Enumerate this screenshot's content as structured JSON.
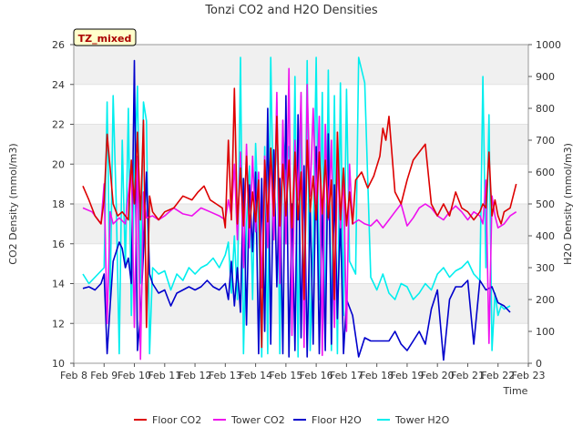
{
  "chart_data": {
    "type": "line",
    "title": "Tonzi CO2 and H2O Densities",
    "site_label": "TZ_mixed",
    "xlabel": "Time",
    "ylabel": "CO2 Density (mmol/m3)",
    "ylabel_right": "H2O Density (mmol/m3)",
    "xlim": [
      8,
      23
    ],
    "ylim": [
      10,
      26
    ],
    "ylim_right": [
      0,
      1000
    ],
    "x_ticks": [
      8,
      9,
      10,
      11,
      12,
      13,
      14,
      15,
      16,
      17,
      18,
      19,
      20,
      21,
      22,
      23
    ],
    "x_tick_labels": [
      "Feb 8",
      "Feb 9",
      "Feb 10",
      "Feb 11",
      "Feb 12",
      "Feb 13",
      "Feb 14",
      "Feb 15",
      "Feb 16",
      "Feb 17",
      "Feb 18",
      "Feb 19",
      "Feb 20",
      "Feb 21",
      "Feb 22",
      "Feb 23"
    ],
    "y_ticks": [
      10,
      12,
      14,
      16,
      18,
      20,
      22,
      24,
      26
    ],
    "y_tick_labels": [
      "10",
      "12",
      "14",
      "16",
      "18",
      "20",
      "22",
      "24",
      "26"
    ],
    "y_ticks_right": [
      0,
      100,
      200,
      300,
      400,
      500,
      600,
      700,
      800,
      900,
      1000
    ],
    "y_tick_labels_right": [
      "0",
      "100",
      "200",
      "300",
      "400",
      "500",
      "600",
      "700",
      "800",
      "900",
      "1000"
    ],
    "series": [
      {
        "name": "Floor CO2",
        "axis": "left",
        "color": "#dd0000",
        "x": [
          8.3,
          8.5,
          8.7,
          8.9,
          9.0,
          9.1,
          9.2,
          9.3,
          9.45,
          9.6,
          9.8,
          9.9,
          10.0,
          10.1,
          10.2,
          10.3,
          10.4,
          10.5,
          10.6,
          10.8,
          11.0,
          11.3,
          11.6,
          11.9,
          12.1,
          12.3,
          12.5,
          12.7,
          12.9,
          13.0,
          13.1,
          13.2,
          13.3,
          13.4,
          13.5,
          13.6,
          13.7,
          13.8,
          13.9,
          14.0,
          14.1,
          14.2,
          14.3,
          14.4,
          14.5,
          14.6,
          14.7,
          14.8,
          14.9,
          15.0,
          15.1,
          15.2,
          15.3,
          15.4,
          15.5,
          15.6,
          15.7,
          15.8,
          15.9,
          16.0,
          16.1,
          16.2,
          16.3,
          16.4,
          16.5,
          16.6,
          16.7,
          16.8,
          16.9,
          17.0,
          17.1,
          17.2,
          17.3,
          17.5,
          17.7,
          17.9,
          18.1,
          18.2,
          18.3,
          18.4,
          18.6,
          18.8,
          19.0,
          19.2,
          19.4,
          19.6,
          19.8,
          20.0,
          20.2,
          20.4,
          20.6,
          20.8,
          21.0,
          21.2,
          21.4,
          21.5,
          21.6,
          21.7,
          21.8,
          21.9,
          22.0,
          22.1,
          22.2,
          22.4,
          22.6
        ],
        "y": [
          18.9,
          18.2,
          17.4,
          17.0,
          18.2,
          21.5,
          19.8,
          18.0,
          17.4,
          17.6,
          17.2,
          20.2,
          18.0,
          21.6,
          17.2,
          22.2,
          11.8,
          18.4,
          17.6,
          17.2,
          17.6,
          17.8,
          18.4,
          18.2,
          18.6,
          18.9,
          18.2,
          18.0,
          17.8,
          16.8,
          21.2,
          17.2,
          23.8,
          17.0,
          19.8,
          16.9,
          20.4,
          16.8,
          18.6,
          17.1,
          19.2,
          10.8,
          20.2,
          17.1,
          20.8,
          17.4,
          22.4,
          16.9,
          20.0,
          17.4,
          20.2,
          16.8,
          20.6,
          17.2,
          19.6,
          13.2,
          21.2,
          17.6,
          19.4,
          17.2,
          20.6,
          17.5,
          20.2,
          17.3,
          19.2,
          13.2,
          21.6,
          17.2,
          19.8,
          16.9,
          18.6,
          17.0,
          19.2,
          19.6,
          18.8,
          19.4,
          20.4,
          21.8,
          21.2,
          22.4,
          18.6,
          18.0,
          19.2,
          20.2,
          20.6,
          21.0,
          18.0,
          17.4,
          18.0,
          17.4,
          18.6,
          17.8,
          17.6,
          17.2,
          17.6,
          18.0,
          17.8,
          20.6,
          17.4,
          18.2,
          17.4,
          17.0,
          17.6,
          17.8,
          19.0
        ]
      },
      {
        "name": "Tower CO2",
        "axis": "left",
        "color": "#ee11ee",
        "x": [
          8.3,
          8.6,
          8.9,
          9.0,
          9.1,
          9.2,
          9.3,
          9.5,
          9.7,
          9.9,
          10.0,
          10.1,
          10.2,
          10.3,
          10.4,
          10.6,
          10.8,
          11.0,
          11.3,
          11.6,
          11.9,
          12.2,
          12.5,
          12.8,
          13.0,
          13.1,
          13.2,
          13.3,
          13.4,
          13.5,
          13.6,
          13.7,
          13.8,
          13.9,
          14.0,
          14.1,
          14.2,
          14.3,
          14.4,
          14.5,
          14.6,
          14.7,
          14.8,
          14.9,
          15.0,
          15.1,
          15.2,
          15.3,
          15.4,
          15.5,
          15.6,
          15.7,
          15.8,
          15.9,
          16.0,
          16.1,
          16.2,
          16.3,
          16.4,
          16.5,
          16.6,
          16.7,
          16.8,
          16.9,
          17.0,
          17.1,
          17.2,
          17.4,
          17.6,
          17.8,
          18.0,
          18.2,
          18.4,
          18.6,
          18.8,
          19.0,
          19.2,
          19.4,
          19.6,
          19.8,
          20.0,
          20.2,
          20.4,
          20.6,
          20.8,
          21.0,
          21.2,
          21.4,
          21.5,
          21.6,
          21.7,
          21.8,
          21.9,
          22.0,
          22.2,
          22.4,
          22.6
        ],
        "y": [
          17.8,
          17.6,
          17.0,
          19.0,
          12.0,
          17.6,
          17.0,
          17.3,
          17.0,
          20.0,
          11.8,
          20.4,
          10.2,
          18.6,
          17.3,
          17.4,
          17.2,
          17.4,
          17.8,
          17.5,
          17.4,
          17.8,
          17.6,
          17.4,
          17.2,
          18.2,
          17.4,
          20.0,
          16.2,
          20.6,
          14.8,
          21.0,
          15.8,
          20.4,
          16.6,
          19.6,
          13.8,
          20.4,
          15.8,
          20.6,
          16.2,
          23.6,
          14.0,
          22.2,
          16.0,
          24.8,
          11.4,
          21.2,
          18.2,
          23.6,
          10.8,
          24.0,
          18.4,
          22.8,
          18.0,
          22.4,
          10.4,
          22.0,
          17.2,
          21.2,
          11.8,
          20.2,
          16.8,
          19.4,
          11.6,
          20.0,
          17.0,
          17.2,
          17.0,
          16.9,
          17.2,
          16.8,
          17.2,
          17.6,
          18.0,
          16.9,
          17.3,
          17.8,
          18.0,
          17.8,
          17.4,
          17.2,
          17.6,
          17.9,
          17.6,
          17.2,
          17.6,
          17.4,
          17.0,
          19.2,
          11.0,
          18.4,
          17.4,
          16.8,
          17.0,
          17.4,
          17.6
        ]
      },
      {
        "name": "Floor H2O",
        "axis": "right",
        "color": "#0000cc",
        "x": [
          8.3,
          8.5,
          8.7,
          8.9,
          9.0,
          9.1,
          9.2,
          9.3,
          9.4,
          9.5,
          9.6,
          9.7,
          9.8,
          9.9,
          10.0,
          10.1,
          10.2,
          10.3,
          10.4,
          10.5,
          10.6,
          10.8,
          11.0,
          11.2,
          11.4,
          11.6,
          11.8,
          12.0,
          12.2,
          12.4,
          12.6,
          12.8,
          13.0,
          13.1,
          13.2,
          13.3,
          13.4,
          13.5,
          13.6,
          13.7,
          13.8,
          13.9,
          14.0,
          14.1,
          14.2,
          14.3,
          14.4,
          14.5,
          14.6,
          14.7,
          14.8,
          14.9,
          15.0,
          15.1,
          15.2,
          15.3,
          15.4,
          15.5,
          15.6,
          15.7,
          15.8,
          15.9,
          16.0,
          16.1,
          16.2,
          16.3,
          16.4,
          16.5,
          16.6,
          16.7,
          16.8,
          16.9,
          17.0,
          17.2,
          17.4,
          17.6,
          17.8,
          18.0,
          18.2,
          18.4,
          18.6,
          18.8,
          19.0,
          19.2,
          19.4,
          19.6,
          19.8,
          20.0,
          20.2,
          20.4,
          20.6,
          20.8,
          21.0,
          21.2,
          21.4,
          21.6,
          21.8,
          22.0,
          22.2,
          22.4
        ],
        "y": [
          235,
          240,
          230,
          250,
          280,
          30,
          180,
          320,
          350,
          380,
          360,
          300,
          330,
          250,
          950,
          40,
          150,
          350,
          600,
          280,
          250,
          220,
          230,
          180,
          220,
          230,
          240,
          230,
          240,
          260,
          240,
          230,
          250,
          200,
          320,
          180,
          300,
          160,
          580,
          120,
          560,
          350,
          600,
          30,
          580,
          100,
          800,
          60,
          670,
          240,
          580,
          30,
          840,
          20,
          500,
          40,
          780,
          80,
          620,
          20,
          500,
          60,
          680,
          30,
          480,
          40,
          720,
          60,
          560,
          140,
          460,
          30,
          200,
          150,
          20,
          80,
          70,
          70,
          70,
          70,
          100,
          60,
          40,
          70,
          100,
          60,
          170,
          230,
          10,
          200,
          240,
          240,
          260,
          60,
          260,
          230,
          240,
          190,
          180,
          160
        ]
      },
      {
        "name": "Tower H2O",
        "axis": "right",
        "color": "#00eeee",
        "x": [
          8.3,
          8.5,
          8.7,
          9.0,
          9.1,
          9.2,
          9.3,
          9.4,
          9.5,
          9.6,
          9.7,
          9.8,
          9.9,
          10.0,
          10.1,
          10.2,
          10.3,
          10.4,
          10.5,
          10.6,
          10.8,
          11.0,
          11.2,
          11.4,
          11.6,
          11.8,
          12.0,
          12.2,
          12.4,
          12.6,
          12.8,
          13.0,
          13.1,
          13.2,
          13.3,
          13.4,
          13.5,
          13.6,
          13.7,
          13.8,
          13.9,
          14.0,
          14.1,
          14.2,
          14.3,
          14.4,
          14.5,
          14.6,
          14.7,
          14.8,
          14.9,
          15.0,
          15.1,
          15.2,
          15.3,
          15.4,
          15.5,
          15.6,
          15.7,
          15.8,
          15.9,
          16.0,
          16.1,
          16.2,
          16.3,
          16.4,
          16.5,
          16.6,
          16.7,
          16.8,
          16.9,
          17.0,
          17.1,
          17.2,
          17.3,
          17.4,
          17.6,
          17.8,
          18.0,
          18.2,
          18.4,
          18.6,
          18.8,
          19.0,
          19.2,
          19.4,
          19.6,
          19.8,
          20.0,
          20.2,
          20.4,
          20.6,
          20.8,
          21.0,
          21.2,
          21.4,
          21.5,
          21.6,
          21.7,
          21.8,
          21.9,
          22.0,
          22.1,
          22.2,
          22.4
        ],
        "y": [
          280,
          250,
          270,
          300,
          820,
          200,
          840,
          500,
          30,
          700,
          300,
          800,
          150,
          600,
          870,
          250,
          820,
          760,
          30,
          300,
          280,
          290,
          230,
          280,
          260,
          300,
          280,
          300,
          310,
          330,
          300,
          340,
          380,
          220,
          400,
          200,
          960,
          30,
          440,
          620,
          200,
          690,
          450,
          20,
          680,
          30,
          960,
          400,
          820,
          30,
          720,
          610,
          680,
          200,
          900,
          20,
          840,
          150,
          950,
          40,
          380,
          960,
          200,
          850,
          100,
          920,
          40,
          840,
          30,
          880,
          150,
          860,
          320,
          300,
          280,
          960,
          880,
          270,
          230,
          280,
          220,
          200,
          250,
          240,
          200,
          220,
          250,
          230,
          280,
          300,
          270,
          290,
          300,
          320,
          280,
          260,
          900,
          300,
          780,
          40,
          220,
          150,
          180,
          170,
          180
        ]
      }
    ],
    "legend": {
      "placement": "bottom-center",
      "entries": [
        "Floor CO2",
        "Tower CO2",
        "Floor H2O",
        "Tower H2O"
      ]
    }
  }
}
